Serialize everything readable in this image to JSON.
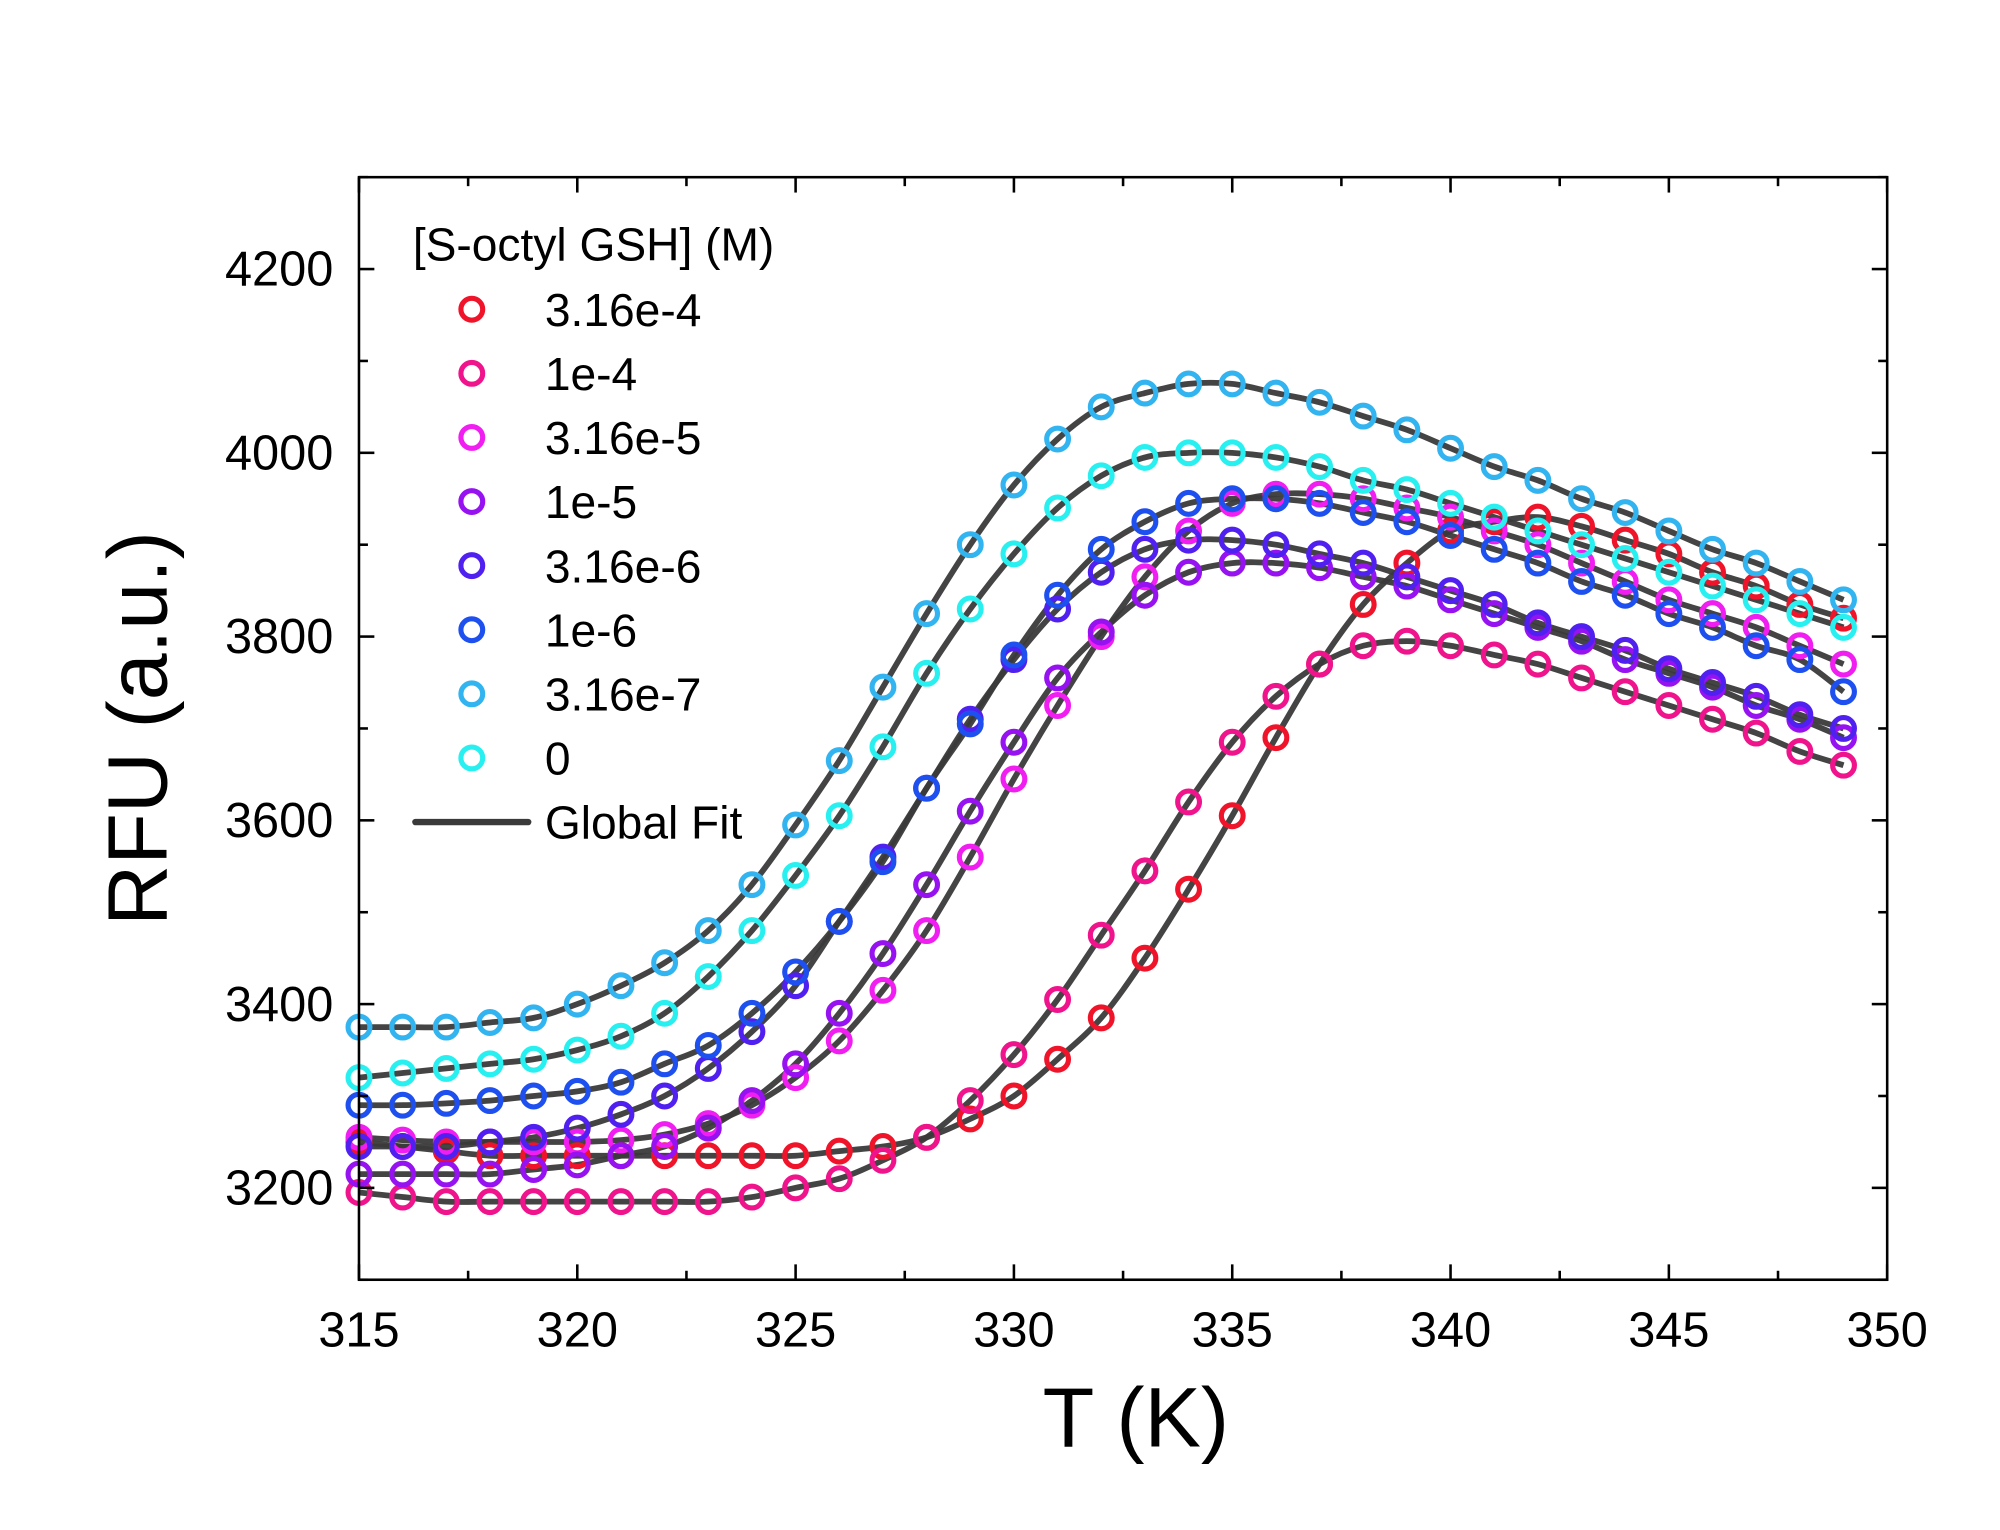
{
  "chart_data": {
    "type": "scatter",
    "xlabel": "T (K)",
    "ylabel": "RFU (a.u.)",
    "xlim": [
      315,
      350
    ],
    "ylim": [
      3100,
      4300
    ],
    "xticks": [
      "315",
      "320",
      "325",
      "330",
      "335",
      "340",
      "345",
      "350"
    ],
    "yticks": [
      "3200",
      "3400",
      "3600",
      "3800",
      "4000",
      "4200"
    ],
    "legend_title": "[S-octyl GSH] (M)",
    "legend_position": "top-left",
    "fit_label": "Global Fit",
    "fit_color": "#3a3a3a",
    "grid": false,
    "x": [
      315,
      316,
      317,
      318,
      319,
      320,
      321,
      322,
      323,
      324,
      325,
      326,
      327,
      328,
      329,
      330,
      331,
      332,
      333,
      334,
      335,
      336,
      337,
      338,
      339,
      340,
      341,
      342,
      343,
      344,
      345,
      346,
      347,
      348,
      349
    ],
    "series": [
      {
        "name": "3.16e-4",
        "color": "#f0142a",
        "values": [
          3250,
          3245,
          3240,
          3235,
          3235,
          3235,
          3235,
          3235,
          3235,
          3235,
          3235,
          3240,
          3245,
          3255,
          3275,
          3300,
          3340,
          3385,
          3450,
          3525,
          3605,
          3690,
          3770,
          3835,
          3880,
          3915,
          3925,
          3930,
          3920,
          3905,
          3890,
          3870,
          3855,
          3835,
          3820
        ]
      },
      {
        "name": "1e-4",
        "color": "#f0148c",
        "values": [
          3195,
          3190,
          3185,
          3185,
          3185,
          3185,
          3185,
          3185,
          3185,
          3190,
          3200,
          3210,
          3230,
          3255,
          3295,
          3345,
          3405,
          3475,
          3545,
          3620,
          3685,
          3735,
          3770,
          3790,
          3795,
          3790,
          3780,
          3770,
          3755,
          3740,
          3725,
          3710,
          3695,
          3675,
          3660
        ]
      },
      {
        "name": "3.16e-5",
        "color": "#f01ef0",
        "values": [
          3255,
          3252,
          3250,
          3250,
          3250,
          3250,
          3252,
          3258,
          3270,
          3290,
          3320,
          3360,
          3415,
          3480,
          3560,
          3645,
          3725,
          3800,
          3865,
          3915,
          3945,
          3955,
          3955,
          3950,
          3940,
          3930,
          3915,
          3900,
          3880,
          3860,
          3840,
          3825,
          3810,
          3790,
          3770
        ]
      },
      {
        "name": "1e-5",
        "color": "#9612f0",
        "values": [
          3215,
          3215,
          3215,
          3215,
          3220,
          3225,
          3235,
          3245,
          3265,
          3295,
          3335,
          3390,
          3455,
          3530,
          3610,
          3685,
          3755,
          3805,
          3845,
          3870,
          3880,
          3880,
          3875,
          3865,
          3855,
          3840,
          3825,
          3810,
          3795,
          3775,
          3760,
          3745,
          3725,
          3710,
          3690
        ]
      },
      {
        "name": "3.16e-6",
        "color": "#5020f0",
        "values": [
          3245,
          3245,
          3245,
          3250,
          3255,
          3265,
          3280,
          3300,
          3330,
          3370,
          3420,
          3490,
          3560,
          3635,
          3710,
          3775,
          3830,
          3870,
          3895,
          3905,
          3905,
          3900,
          3890,
          3880,
          3865,
          3850,
          3835,
          3815,
          3800,
          3785,
          3765,
          3750,
          3735,
          3715,
          3700
        ]
      },
      {
        "name": "1e-6",
        "color": "#1e50f0",
        "values": [
          3290,
          3290,
          3292,
          3295,
          3300,
          3305,
          3315,
          3335,
          3355,
          3390,
          3435,
          3490,
          3555,
          3635,
          3705,
          3780,
          3845,
          3895,
          3925,
          3945,
          3950,
          3950,
          3945,
          3935,
          3925,
          3910,
          3895,
          3880,
          3860,
          3845,
          3825,
          3810,
          3790,
          3775,
          3740
        ]
      },
      {
        "name": "3.16e-7",
        "color": "#32b4f0",
        "values": [
          3375,
          3375,
          3375,
          3380,
          3385,
          3400,
          3420,
          3445,
          3480,
          3530,
          3595,
          3665,
          3745,
          3825,
          3900,
          3965,
          4015,
          4050,
          4065,
          4075,
          4075,
          4065,
          4055,
          4040,
          4025,
          4005,
          3985,
          3970,
          3950,
          3935,
          3915,
          3895,
          3880,
          3860,
          3840
        ]
      },
      {
        "name": "0",
        "color": "#28f0f0",
        "values": [
          3320,
          3325,
          3330,
          3335,
          3340,
          3350,
          3365,
          3390,
          3430,
          3480,
          3540,
          3605,
          3680,
          3760,
          3830,
          3890,
          3940,
          3975,
          3995,
          4000,
          4000,
          3995,
          3985,
          3970,
          3960,
          3945,
          3930,
          3915,
          3900,
          3885,
          3870,
          3855,
          3840,
          3825,
          3810
        ]
      }
    ]
  }
}
